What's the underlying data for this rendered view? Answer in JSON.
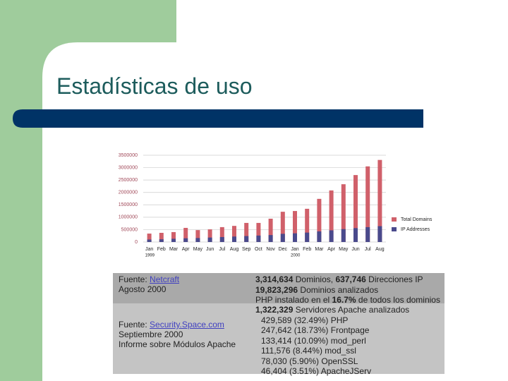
{
  "slide": {
    "title": "Estadísticas de uso"
  },
  "chart": {
    "type": "bar",
    "categories": [
      "Jan",
      "Feb",
      "Mar",
      "Apr",
      "May",
      "Jun",
      "Jul",
      "Aug",
      "Sep",
      "Oct",
      "Nov",
      "Dec",
      "Jan",
      "Feb",
      "Mar",
      "Apr",
      "May",
      "Jun",
      "Jul",
      "Aug"
    ],
    "x_groups": [
      {
        "label": "1999",
        "start": 0
      },
      {
        "label": "2000",
        "start": 12
      }
    ],
    "series": [
      {
        "name": "Total Domains",
        "color": "#d0606a",
        "values": [
          340000,
          370000,
          400000,
          570000,
          480000,
          510000,
          600000,
          650000,
          770000,
          770000,
          940000,
          1220000,
          1250000,
          1340000,
          1740000,
          2080000,
          2330000,
          2700000,
          3050000,
          3310000
        ]
      },
      {
        "name": "IP Addresses",
        "color": "#4a4a8c",
        "values": [
          100000,
          110000,
          130000,
          150000,
          160000,
          180000,
          200000,
          220000,
          240000,
          260000,
          280000,
          330000,
          350000,
          380000,
          430000,
          470000,
          520000,
          560000,
          600000,
          640000
        ]
      }
    ],
    "ylim": [
      0,
      3500000
    ],
    "yticks": [
      0,
      500000,
      1000000,
      1500000,
      2000000,
      2500000,
      3000000,
      3500000
    ],
    "grid": true,
    "legend": "right"
  },
  "table": {
    "rows": [
      {
        "source_prefix": "Fuente:",
        "source_link": "Netcraft",
        "date": "Agosto 2000",
        "lines": [
          {
            "segments": [
              {
                "text": "3,314,634",
                "bold": true
              },
              {
                "text": "Dominios,"
              },
              {
                "text": "637,746",
                "bold": true
              },
              {
                "text": "Direcciones IP"
              }
            ]
          },
          {
            "segments": [
              {
                "text": "19,823,296",
                "bold": true
              },
              {
                "text": "Dominios analizados"
              }
            ]
          },
          {
            "segments": [
              {
                "text": "PHP instalado en el"
              },
              {
                "text": "16.7%",
                "bold": true
              },
              {
                "text": "de todos los dominios"
              }
            ]
          }
        ]
      },
      {
        "source_prefix": "Fuente:",
        "source_link": "Security.Space.com",
        "date": "Septiembre 2000",
        "note": "Informe sobre Módulos Apache",
        "lines": [
          {
            "segments": [
              {
                "text": "1,322,329",
                "bold": true
              },
              {
                "text": "Servidores Apache analizados"
              }
            ]
          },
          {
            "segments": [
              {
                "text": "429,589 (32.49%) PHP"
              }
            ],
            "indent": true
          },
          {
            "segments": [
              {
                "text": "247,642 (18.73%) Frontpage"
              }
            ],
            "indent": true
          },
          {
            "segments": [
              {
                "text": "133,414 (10.09%) mod_perl"
              }
            ],
            "indent": true
          },
          {
            "segments": [
              {
                "text": "111,576 (8.44%) mod_ssl"
              }
            ],
            "indent": true
          },
          {
            "segments": [
              {
                "text": "78,030 (5.90%) OpenSSL"
              }
            ],
            "indent": true
          },
          {
            "segments": [
              {
                "text": "46,404 (3.51%) ApacheJServ"
              }
            ],
            "indent": true
          }
        ]
      }
    ]
  }
}
